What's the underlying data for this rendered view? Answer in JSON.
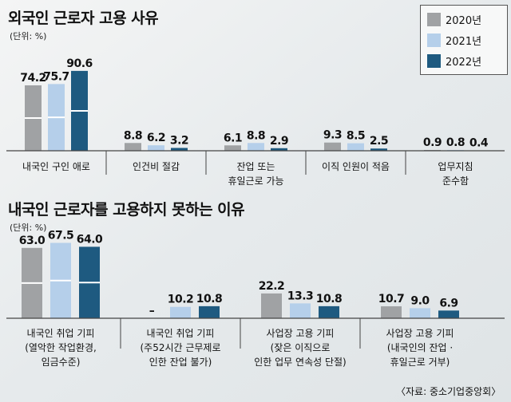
{
  "colors": {
    "c2020": "#a0a2a4",
    "c2021": "#b5cfea",
    "c2022": "#1e5a80"
  },
  "source": "〈자료: 중소기업중앙회〉",
  "legend": [
    "2020년",
    "2021년",
    "2022년"
  ],
  "chart_data": [
    {
      "type": "bar",
      "title": "외국인 근로자 고용 사유",
      "unit": "(단위: %)",
      "categories": [
        [
          "내국인 구인 애로"
        ],
        [
          "인건비 절감"
        ],
        [
          "잔업 또는",
          "휴일근로 가능"
        ],
        [
          "이직 인원이 적음"
        ],
        [
          "업무지침",
          "준수함"
        ]
      ],
      "series": [
        {
          "name": "2020년",
          "values": [
            74.2,
            8.8,
            6.1,
            9.3,
            0.9
          ],
          "labels": [
            "74.2",
            "8.8",
            "6.1",
            "9.3",
            "0.9"
          ]
        },
        {
          "name": "2021년",
          "values": [
            75.7,
            6.2,
            8.8,
            8.5,
            0.8
          ],
          "labels": [
            "75.7",
            "6.2",
            "8.8",
            "8.5",
            "0.8"
          ]
        },
        {
          "name": "2022년",
          "values": [
            90.6,
            3.2,
            2.9,
            2.5,
            0.4
          ],
          "labels": [
            "90.6",
            "3.2",
            "2.9",
            "2.5",
            "0.4"
          ]
        }
      ],
      "legend_position": "top-right"
    },
    {
      "type": "bar",
      "title": "내국인 근로자를 고용하지 못하는 이유",
      "unit": "(단위: %)",
      "categories": [
        [
          "내국인 취업 기피",
          "(열악한 작업환경,",
          "임금수준)"
        ],
        [
          "내국인 취업 기피",
          "(주52시간 근무제로",
          "인한 잔업 불가)"
        ],
        [
          "사업장 고용 기피",
          "(잦은 이직으로",
          "인한 업무 연속성 단절)"
        ],
        [
          "사업장 고용 기피",
          "(내국인의 잔업 ·",
          "휴일근로 거부)"
        ]
      ],
      "series": [
        {
          "name": "2020년",
          "values": [
            63.0,
            0,
            22.2,
            10.7
          ],
          "labels": [
            "63.0",
            "–",
            "22.2",
            "10.7"
          ]
        },
        {
          "name": "2021년",
          "values": [
            67.5,
            10.2,
            13.3,
            9.0
          ],
          "labels": [
            "67.5",
            "10.2",
            "13.3",
            "9.0"
          ]
        },
        {
          "name": "2022년",
          "values": [
            64.0,
            10.8,
            10.8,
            6.9
          ],
          "labels": [
            "64.0",
            "10.8",
            "10.8",
            "6.9"
          ]
        }
      ]
    }
  ]
}
